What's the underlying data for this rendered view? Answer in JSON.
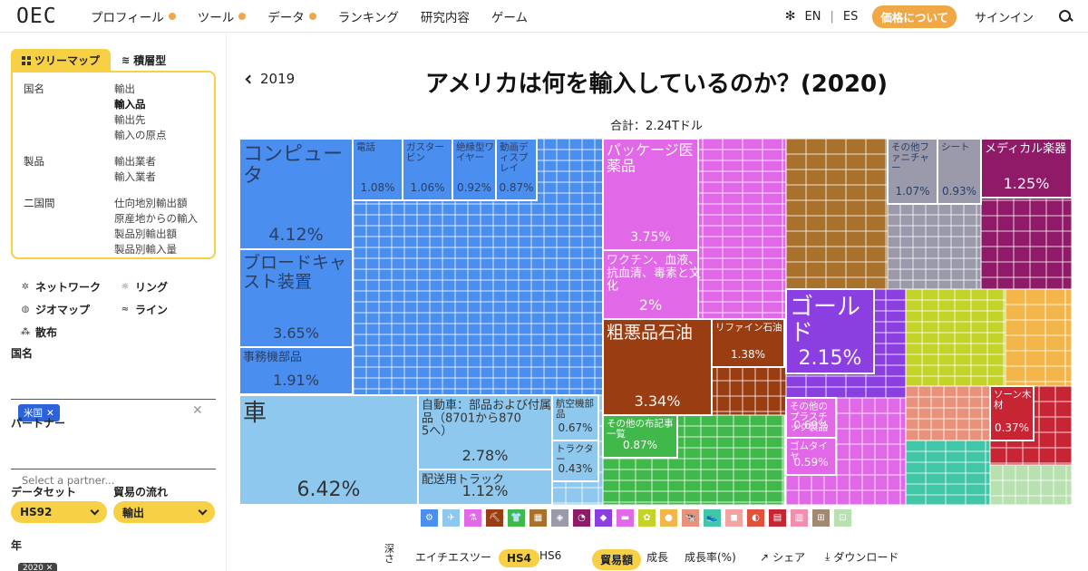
{
  "nav": {
    "logo": "OEC",
    "items": [
      {
        "label": "プロフィール",
        "dot": true
      },
      {
        "label": "ツール",
        "dot": true
      },
      {
        "label": "データ",
        "dot": true
      },
      {
        "label": "ランキング",
        "dot": false
      },
      {
        "label": "研究内容",
        "dot": false
      },
      {
        "label": "ゲーム",
        "dot": false
      }
    ],
    "lang_en": "EN",
    "lang_sep": "|",
    "lang_es": "ES",
    "price_label": "価格について",
    "signin_label": "サインイン"
  },
  "sidebar": {
    "tabs": [
      {
        "label": "ツリーマップ",
        "active": true
      },
      {
        "label": "積層型",
        "active": false
      }
    ],
    "menu": [
      {
        "label": "国名",
        "items": [
          "輸出",
          "輸入品",
          "輸出先",
          "輸入の原点"
        ],
        "selected": 1
      },
      {
        "label": "製品",
        "items": [
          "輸出業者",
          "輸入業者"
        ],
        "selected": -1
      },
      {
        "label": "二国間",
        "items": [
          "仕向地別輸出額",
          "原産地からの輸入",
          "製品別輸出額",
          "製品別輸入量"
        ],
        "selected": -1
      }
    ],
    "viz_options": [
      [
        "ネットワーク",
        "リング"
      ],
      [
        "ジオマップ",
        "ライン"
      ],
      [
        "散布",
        ""
      ]
    ],
    "country_label": "国名",
    "country_tag": "米国",
    "partner_label": "パートナー",
    "partner_placeholder": "Select a partner...",
    "dataset_label": "データセット",
    "dataset_value": "HS92",
    "flow_label": "貿易の流れ",
    "flow_value": "輸出",
    "year_label": "年",
    "year_value": "2020"
  },
  "main": {
    "back_label": "2019",
    "title": "アメリカは何を輸入しているのか？(2020)",
    "total": "合計：2.24Tドル"
  },
  "treemap": {
    "labeled": [
      {
        "id": "computers",
        "label": "コンピュータ",
        "pct": "4.12%",
        "color": "#4a8ef0",
        "big": true
      },
      {
        "id": "broadcast",
        "label": "ブロードキャスト装置",
        "pct": "3.65%",
        "color": "#4a8ef0",
        "big": true
      },
      {
        "id": "office-parts",
        "label": "事務機部品",
        "pct": "1.91%",
        "color": "#4a8ef0"
      },
      {
        "id": "cars",
        "label": "車",
        "pct": "6.42%",
        "color": "#8ec8ee",
        "big": true
      },
      {
        "id": "car-parts",
        "label": "自動車：部品および付属品（8701から8705へ）",
        "pct": "2.78%",
        "color": "#8ec8ee"
      },
      {
        "id": "delivery-trucks",
        "label": "配送用トラック",
        "pct": "1.12%",
        "color": "#8ec8ee"
      },
      {
        "id": "aircraft-parts",
        "label": "航空機部品",
        "pct": "0.67%",
        "color": "#8ec8ee"
      },
      {
        "id": "tractors",
        "label": "トラクター",
        "pct": "0.43%",
        "color": "#8ec8ee"
      },
      {
        "id": "packaged-meds",
        "label": "パッケージ医薬品",
        "pct": "3.75%",
        "color": "#e168e6",
        "big": true
      },
      {
        "id": "vaccines",
        "label": "ワクチン、血液、抗血清、毒素と文化",
        "pct": "2%",
        "color": "#e168e6"
      },
      {
        "id": "crude-oil",
        "label": "粗悪品石油",
        "pct": "3.34%",
        "color": "#9a3d12",
        "big": true
      },
      {
        "id": "refined-oil",
        "label": "リファイン石油",
        "pct": "1.38%",
        "color": "#9a3d12"
      },
      {
        "id": "gold",
        "label": "ゴールド",
        "pct": "2.15%",
        "color": "#8c3fe0",
        "big": true
      },
      {
        "id": "medical-instruments",
        "label": "メディカル楽器",
        "pct": "1.25%",
        "color": "#8e1a68"
      },
      {
        "id": "other-furniture",
        "label": "その他ファニチャー",
        "pct": "1.07%",
        "color": "#9a9aab"
      },
      {
        "id": "seats",
        "label": "シート",
        "pct": "0.93%",
        "color": "#9a9aab"
      },
      {
        "id": "phones",
        "label": "電話",
        "pct": "1.08%",
        "color": "#4a8ef0"
      },
      {
        "id": "gas-turbines",
        "label": "ガスタービン",
        "pct": "1.06%",
        "color": "#4a8ef0"
      },
      {
        "id": "insulated-wire",
        "label": "絶縁型ワイヤー",
        "pct": "0.92%",
        "color": "#4a8ef0"
      },
      {
        "id": "video-displays",
        "label": "動画ディスプレイ",
        "pct": "0.87%",
        "color": "#4a8ef0"
      },
      {
        "id": "other-cloth",
        "label": "その他の布記事一覧",
        "pct": "0.87%",
        "color": "#40b84a"
      },
      {
        "id": "plastic-products",
        "label": "その他のプラスチック製品情報",
        "pct": "0.69%",
        "color": "#e168e6"
      },
      {
        "id": "rubber-tires",
        "label": "ゴムタイヤ",
        "pct": "0.59%",
        "color": "#e168e6"
      },
      {
        "id": "toys",
        "label": "ソーン木材",
        "pct": "0.37%",
        "color": "#c72434"
      }
    ],
    "categories": [
      {
        "name": "machines",
        "color": "#4a8ef0",
        "icon": "⚙"
      },
      {
        "name": "transportation",
        "color": "#8ec8ee",
        "icon": "✈"
      },
      {
        "name": "chemicals",
        "color": "#e168e6",
        "icon": "⚗"
      },
      {
        "name": "minerals",
        "color": "#9a3d12",
        "icon": "⛏"
      },
      {
        "name": "textiles",
        "color": "#40b84a",
        "icon": "👕"
      },
      {
        "name": "metals",
        "color": "#a8722c",
        "icon": "▦"
      },
      {
        "name": "miscellaneous",
        "color": "#9a9aab",
        "icon": "◈"
      },
      {
        "name": "instruments",
        "color": "#8e1a68",
        "icon": "◔"
      },
      {
        "name": "precious-metals",
        "color": "#8c3fe0",
        "icon": "◆"
      },
      {
        "name": "plastics",
        "color": "#e168e6",
        "icon": "▬"
      },
      {
        "name": "vegetable-products",
        "color": "#c3d32a",
        "icon": "✿"
      },
      {
        "name": "foodstuffs",
        "color": "#f2b64b",
        "icon": "●"
      },
      {
        "name": "animal-products",
        "color": "#e8927c",
        "icon": "🐄"
      },
      {
        "name": "footwear",
        "color": "#42c6a8",
        "icon": "👟"
      },
      {
        "name": "stone-glass",
        "color": "#f4a2a2",
        "icon": "◼"
      },
      {
        "name": "animal-hides",
        "color": "#e0523a",
        "icon": "◐"
      },
      {
        "name": "wood",
        "color": "#c72434",
        "icon": "▤"
      },
      {
        "name": "paper",
        "color": "#f08fb0",
        "icon": "▥"
      },
      {
        "name": "weapons",
        "color": "#a28a70",
        "icon": "⊞"
      },
      {
        "name": "arts",
        "color": "#b8e0b0",
        "icon": "⊡"
      }
    ]
  },
  "bottom": {
    "depth_label": "深さ",
    "hs_label": "エイチエスツー",
    "hs4": "HS4",
    "hs6": "HS6",
    "trade_value": "貿易額",
    "growth": "成長",
    "growth_rate": "成長率(%)",
    "share": "シェア",
    "download": "ダウンロード"
  }
}
